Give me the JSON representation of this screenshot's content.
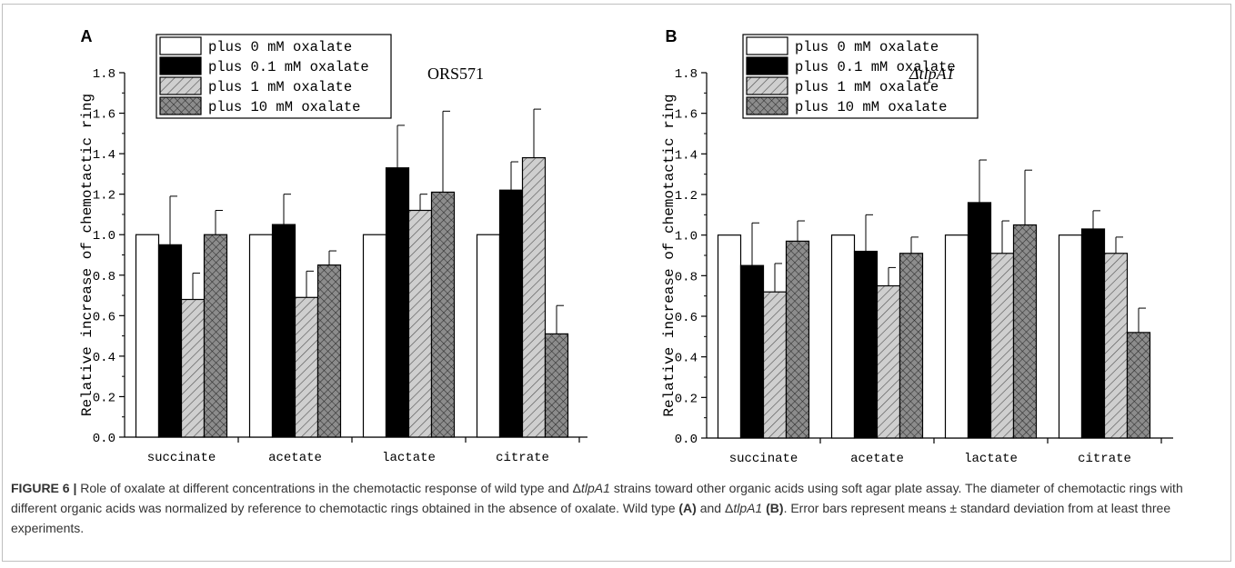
{
  "chart_data": [
    {
      "panel_label": "A",
      "type": "bar",
      "title": "ORS571",
      "title_italic": false,
      "ylabel": "Relative increase of chemotactic ring",
      "xlabel": "",
      "ylim": [
        0,
        1.8
      ],
      "yticks": [
        "0.0",
        "0.2",
        "0.4",
        "0.6",
        "0.8",
        "1.0",
        "1.2",
        "1.4",
        "1.6",
        "1.8"
      ],
      "categories": [
        "succinate",
        "acetate",
        "lactate",
        "citrate"
      ],
      "legend_position": "top-left",
      "grid": false,
      "series": [
        {
          "name": "plus 0 mM oxalate",
          "fill": "white",
          "values": [
            1.0,
            1.0,
            1.0,
            1.0
          ],
          "errors": [
            0,
            0,
            0,
            0
          ]
        },
        {
          "name": "plus 0.1 mM oxalate",
          "fill": "black",
          "values": [
            0.95,
            1.05,
            1.33,
            1.22
          ],
          "errors": [
            0.24,
            0.15,
            0.21,
            0.14
          ]
        },
        {
          "name": "plus 1 mM oxalate",
          "fill": "diagonal-hatch",
          "values": [
            0.68,
            0.69,
            1.12,
            1.38
          ],
          "errors": [
            0.13,
            0.13,
            0.08,
            0.24
          ]
        },
        {
          "name": "plus 10 mM oxalate",
          "fill": "crosshatch",
          "values": [
            1.0,
            0.85,
            1.21,
            0.51
          ],
          "errors": [
            0.12,
            0.07,
            0.4,
            0.14
          ]
        }
      ]
    },
    {
      "panel_label": "B",
      "type": "bar",
      "title": "ΔtlpA1",
      "title_italic": true,
      "ylabel": "Relative increase of chemotactic ring",
      "xlabel": "",
      "ylim": [
        0,
        1.8
      ],
      "yticks": [
        "0.0",
        "0.2",
        "0.4",
        "0.6",
        "0.8",
        "1.0",
        "1.2",
        "1.4",
        "1.6",
        "1.8"
      ],
      "categories": [
        "succinate",
        "acetate",
        "lactate",
        "citrate"
      ],
      "legend_position": "top-left",
      "grid": false,
      "series": [
        {
          "name": "plus 0 mM oxalate",
          "fill": "white",
          "values": [
            1.0,
            1.0,
            1.0,
            1.0
          ],
          "errors": [
            0,
            0,
            0,
            0
          ]
        },
        {
          "name": "plus 0.1 mM oxalate",
          "fill": "black",
          "values": [
            0.85,
            0.92,
            1.16,
            1.03
          ],
          "errors": [
            0.21,
            0.18,
            0.21,
            0.09
          ]
        },
        {
          "name": "plus 1 mM oxalate",
          "fill": "diagonal-hatch",
          "values": [
            0.72,
            0.75,
            0.91,
            0.91
          ],
          "errors": [
            0.14,
            0.09,
            0.16,
            0.08
          ]
        },
        {
          "name": "plus 10 mM oxalate",
          "fill": "crosshatch",
          "values": [
            0.97,
            0.91,
            1.05,
            0.52
          ],
          "errors": [
            0.1,
            0.08,
            0.27,
            0.12
          ]
        }
      ]
    }
  ],
  "caption": {
    "figure_label": "FIGURE 6 |",
    "text_1": " Role of oxalate at different concentrations in the chemotactic response of wild type and Δ",
    "gene_1": "tlpA1",
    "text_2": " strains toward other organic acids using soft agar plate assay. The diameter of chemotactic rings with different organic acids was normalized by reference to chemotactic rings obtained in the absence of oxalate. Wild type ",
    "ref_a": "(A)",
    "text_3": " and Δ",
    "gene_2": "tlpA1",
    "ref_b": "(B)",
    "text_4": ". Error bars represent means ± standard deviation from at least three experiments."
  }
}
